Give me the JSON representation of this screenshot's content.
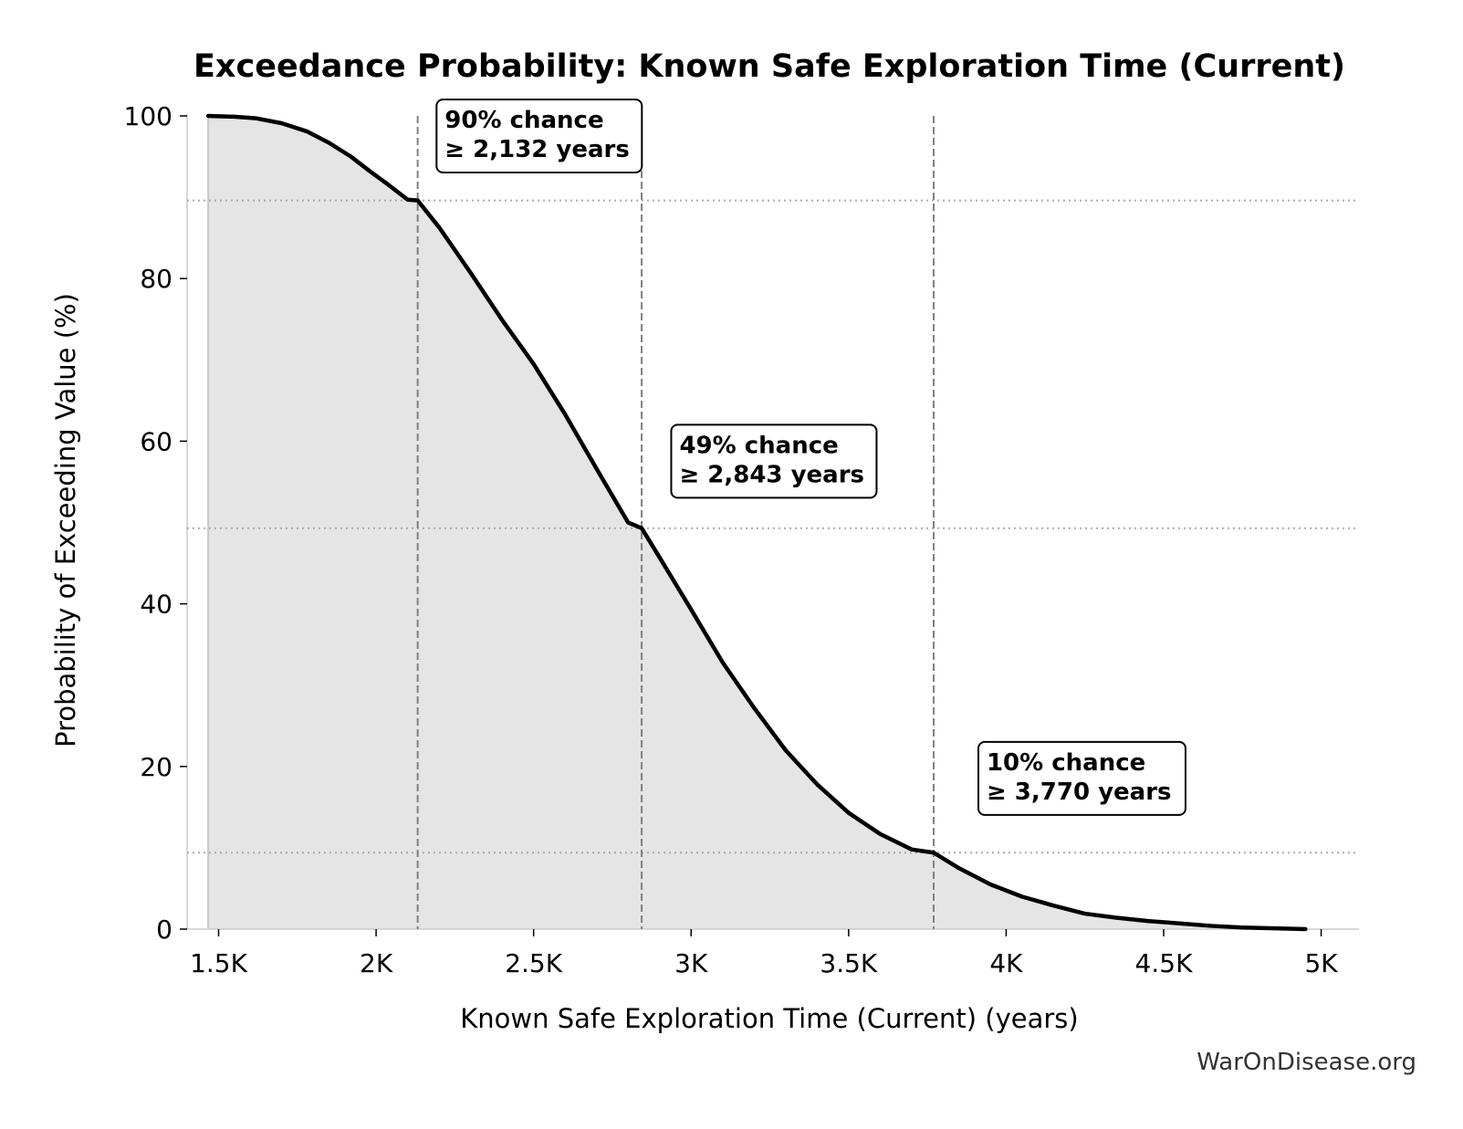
{
  "chart_data": {
    "type": "area",
    "title": "Exceedance Probability: Known Safe Exploration Time (Current)",
    "xlabel": "Known Safe Exploration Time (Current) (years)",
    "ylabel": "Probability of Exceeding Value (%)",
    "xlim": [
      1400,
      5120
    ],
    "ylim": [
      0,
      100
    ],
    "x_ticks": [
      1500,
      2000,
      2500,
      3000,
      3500,
      4000,
      4500,
      5000
    ],
    "x_tick_labels": [
      "1.5K",
      "2K",
      "2.5K",
      "3K",
      "3.5K",
      "4K",
      "4.5K",
      "5K"
    ],
    "y_ticks": [
      0,
      20,
      40,
      60,
      80,
      100
    ],
    "y_tick_labels": [
      "0",
      "20",
      "40",
      "60",
      "80",
      "100"
    ],
    "grid": false,
    "series": [
      {
        "x": [
          1467,
          1550,
          1620,
          1700,
          1780,
          1850,
          1920,
          1980,
          2040,
          2100,
          2132,
          2200,
          2300,
          2400,
          2500,
          2600,
          2700,
          2800,
          2843,
          2900,
          3000,
          3100,
          3200,
          3300,
          3400,
          3500,
          3600,
          3700,
          3770,
          3850,
          3950,
          4050,
          4150,
          4250,
          4350,
          4450,
          4550,
          4650,
          4750,
          4850,
          4950
        ],
        "y": [
          100,
          99.9,
          99.7,
          99.1,
          98.1,
          96.7,
          95.0,
          93.2,
          91.5,
          89.7,
          89.6,
          86.3,
          80.7,
          74.9,
          69.5,
          63.3,
          56.6,
          50.0,
          49.3,
          45.7,
          39.3,
          32.8,
          27.2,
          22.0,
          17.8,
          14.3,
          11.7,
          9.8,
          9.4,
          7.5,
          5.5,
          4.0,
          2.9,
          1.9,
          1.4,
          1.0,
          0.7,
          0.4,
          0.2,
          0.1,
          0.0
        ]
      }
    ],
    "reference_lines": {
      "vertical_x": [
        2132,
        2843,
        3770
      ],
      "horizontal_y": [
        89.6,
        49.3,
        9.4
      ]
    },
    "annotations": [
      {
        "line1": "90% chance",
        "line2": "≥ 2,132 years"
      },
      {
        "line1": "49% chance",
        "line2": "≥ 2,843 years"
      },
      {
        "line1": "10% chance",
        "line2": "≥ 3,770 years"
      }
    ]
  },
  "watermark": "WarOnDisease.org",
  "colors": {
    "line": "#000000",
    "fill": "#e5e5e5",
    "reference_line": "#808080",
    "axis": "#cccccc"
  }
}
